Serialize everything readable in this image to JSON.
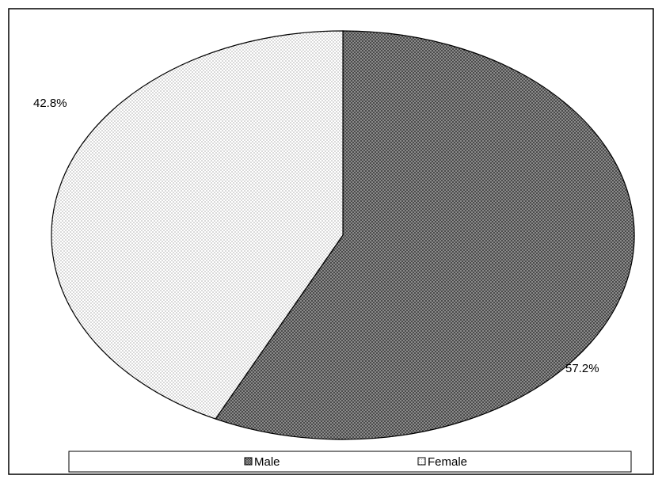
{
  "chart_data": {
    "type": "pie",
    "categories": [
      "Male",
      "Female"
    ],
    "values": [
      57.2,
      42.8
    ],
    "data_labels": [
      "57.2%",
      "42.8%"
    ],
    "title": "",
    "legend": {
      "placement": "bottom",
      "entries": [
        "Male",
        "Female"
      ]
    },
    "colors": {
      "male_fill": "#2b2b2b",
      "female_fill": "#f2f2f2",
      "stroke": "#000000"
    }
  }
}
